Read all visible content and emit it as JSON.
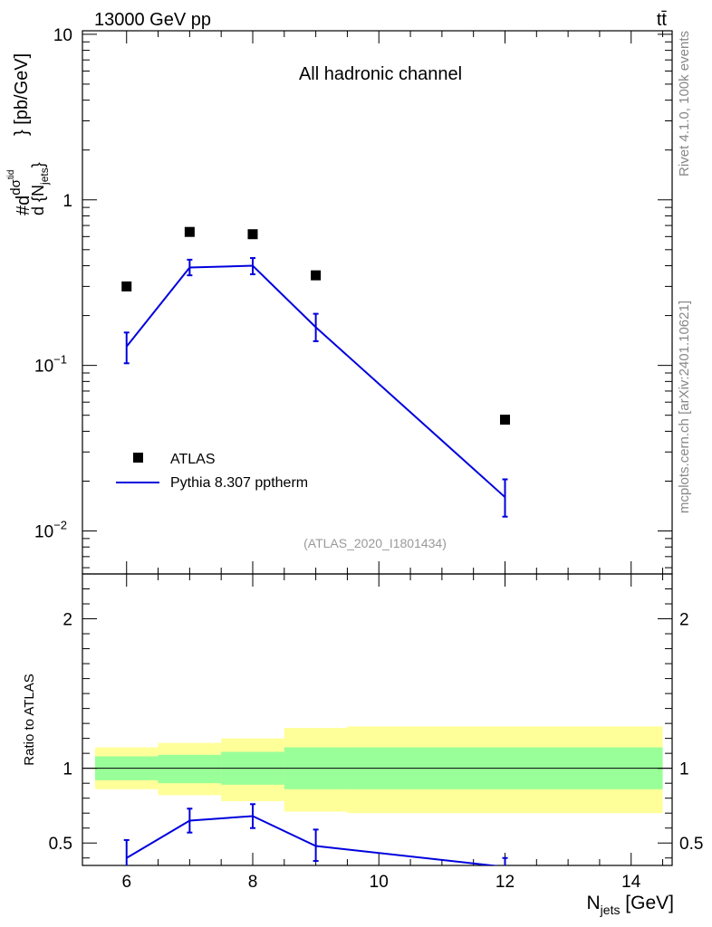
{
  "header": {
    "energy_label": "13000 GeV pp",
    "process_label": "tt̄"
  },
  "side": {
    "rivet_label": "Rivet 4.1.0,  100k events",
    "source_label": "mcplots.cern.ch [arXiv:2401.10621]"
  },
  "chart_data": [
    {
      "type": "scatter",
      "panel": "main",
      "title": "All hadronic channel",
      "analysis_label": "(ATLAS_2020_I1801434)",
      "xlabel": "N_jets [GeV]",
      "ylabel": "#d dσ^tid / d{N_jets} [pb/GeV]",
      "yscale": "log",
      "xlim": [
        5.3,
        14.65
      ],
      "ylim": [
        0.0055,
        10.5
      ],
      "y_ticks": [
        {
          "value": 0.01,
          "label": "10",
          "exp": "−2"
        },
        {
          "value": 0.1,
          "label": "10",
          "exp": "−1"
        },
        {
          "value": 1,
          "label": "1",
          "exp": ""
        },
        {
          "value": 10,
          "label": "10",
          "exp": ""
        }
      ],
      "legend_position": "lower-left",
      "series": [
        {
          "name": "ATLAS",
          "kind": "points",
          "color": "#000000",
          "x": [
            6,
            7,
            8,
            9,
            12
          ],
          "y": [
            0.3,
            0.64,
            0.62,
            0.35,
            0.047
          ]
        },
        {
          "name": "Pythia 8.307 pptherm",
          "kind": "line",
          "color": "#0000dd",
          "x": [
            6,
            7,
            8,
            9,
            12
          ],
          "y": [
            0.13,
            0.39,
            0.4,
            0.17,
            0.016
          ],
          "err_low": [
            0.103,
            0.35,
            0.355,
            0.14,
            0.0122
          ],
          "err_high": [
            0.158,
            0.435,
            0.445,
            0.205,
            0.0205
          ]
        }
      ]
    },
    {
      "type": "line",
      "panel": "ratio",
      "ylabel": "Ratio to ATLAS",
      "xlabel": "N_jets [GeV]",
      "xlim": [
        5.3,
        14.65
      ],
      "ylim": [
        0.35,
        2.3
      ],
      "x_ticks": [
        6,
        8,
        10,
        12,
        14
      ],
      "y_ticks": [
        0.5,
        1,
        2
      ],
      "reference_line": 1,
      "bands": [
        {
          "name": "ATLAS uncertainty (total)",
          "color": "#ffff99",
          "bins": [
            {
              "x0": 5.5,
              "x1": 6.5,
              "lo": 0.86,
              "hi": 1.14
            },
            {
              "x0": 6.5,
              "x1": 7.5,
              "lo": 0.82,
              "hi": 1.17
            },
            {
              "x0": 7.5,
              "x1": 8.5,
              "lo": 0.78,
              "hi": 1.2
            },
            {
              "x0": 8.5,
              "x1": 9.5,
              "lo": 0.71,
              "hi": 1.27
            },
            {
              "x0": 9.5,
              "x1": 14.5,
              "lo": 0.7,
              "hi": 1.28
            }
          ]
        },
        {
          "name": "ATLAS uncertainty (stat)",
          "color": "#99ff99",
          "bins": [
            {
              "x0": 5.5,
              "x1": 6.5,
              "lo": 0.92,
              "hi": 1.08
            },
            {
              "x0": 6.5,
              "x1": 7.5,
              "lo": 0.9,
              "hi": 1.09
            },
            {
              "x0": 7.5,
              "x1": 8.5,
              "lo": 0.89,
              "hi": 1.11
            },
            {
              "x0": 8.5,
              "x1": 9.5,
              "lo": 0.86,
              "hi": 1.14
            },
            {
              "x0": 9.5,
              "x1": 14.5,
              "lo": 0.86,
              "hi": 1.14
            }
          ]
        }
      ],
      "series": [
        {
          "name": "Pythia 8.307 pptherm / ATLAS",
          "color": "#0000dd",
          "x": [
            6,
            7,
            8,
            9,
            12
          ],
          "y": [
            0.4,
            0.65,
            0.68,
            0.48,
            0.34
          ],
          "err_low": [
            0.3,
            0.57,
            0.6,
            0.38,
            0.3
          ],
          "err_high": [
            0.52,
            0.73,
            0.76,
            0.59,
            0.4
          ]
        }
      ]
    }
  ]
}
